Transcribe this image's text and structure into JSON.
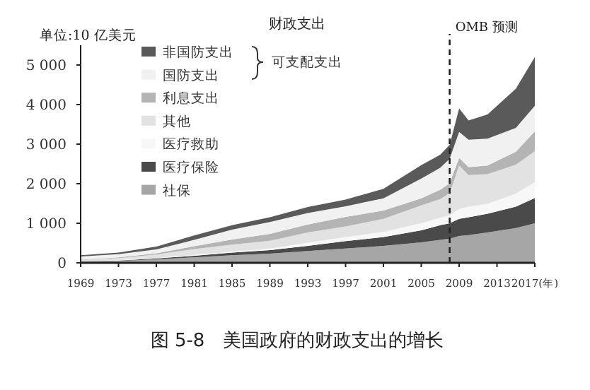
{
  "chart_data": {
    "type": "area",
    "stacked": true,
    "title": "财政支出",
    "ylabel": "单位:10 亿美元",
    "x": [
      1969,
      1973,
      1977,
      1981,
      1985,
      1989,
      1993,
      1997,
      2001,
      2005,
      2007,
      2008,
      2009,
      2010,
      2012,
      2015,
      2017
    ],
    "series": [
      {
        "name": "社保",
        "color": "#a6a6a6",
        "values": [
          30,
          50,
          90,
          140,
          190,
          230,
          300,
          360,
          430,
          520,
          580,
          610,
          680,
          700,
          770,
          880,
          1000
        ]
      },
      {
        "name": "医疗保险",
        "color": "#4a4a4a",
        "values": [
          10,
          10,
          20,
          40,
          70,
          90,
          130,
          190,
          220,
          300,
          370,
          390,
          430,
          450,
          470,
          540,
          640
        ]
      },
      {
        "name": "医疗救助",
        "color": "#f7f7f7",
        "values": [
          0,
          10,
          10,
          20,
          20,
          40,
          80,
          100,
          130,
          180,
          190,
          200,
          250,
          270,
          250,
          330,
          400
        ]
      },
      {
        "name": "其他",
        "color": "#e2e2e2",
        "values": [
          30,
          50,
          90,
          150,
          180,
          200,
          260,
          270,
          330,
          450,
          470,
          560,
          1100,
          800,
          750,
          730,
          780
        ]
      },
      {
        "name": "利息支出",
        "color": "#b4b4b4",
        "values": [
          10,
          20,
          30,
          70,
          130,
          170,
          200,
          240,
          210,
          180,
          240,
          250,
          190,
          200,
          220,
          330,
          500
        ]
      },
      {
        "name": "国防支出",
        "color": "#f1f1f1",
        "values": [
          80,
          80,
          100,
          160,
          250,
          300,
          290,
          270,
          310,
          500,
          550,
          620,
          660,
          690,
          680,
          600,
          650
        ]
      },
      {
        "name": "非国防支出",
        "color": "#5a5a5a",
        "values": [
          30,
          40,
          70,
          110,
          110,
          120,
          150,
          170,
          240,
          340,
          330,
          350,
          590,
          490,
          610,
          990,
          1230
        ]
      }
    ],
    "xlim": [
      1969,
      2017
    ],
    "ylim": [
      0,
      5500
    ],
    "xticks": [
      1969,
      1973,
      1977,
      1981,
      1985,
      1989,
      1993,
      1997,
      2001,
      2005,
      2009,
      2013,
      {
        "value": 2017,
        "label": "2017(年)"
      }
    ],
    "yticks": [
      0,
      {
        "value": 1000,
        "label": "1 000"
      },
      {
        "value": 2000,
        "label": "2 000"
      },
      {
        "value": 3000,
        "label": "3 000"
      },
      {
        "value": 4000,
        "label": "4 000"
      },
      {
        "value": 5000,
        "label": "5 000"
      }
    ],
    "ref_lines": [
      {
        "axis": "x",
        "value": 2008,
        "label": "OMB 预测",
        "line_style": "dashed",
        "color": "#222222"
      }
    ],
    "legend": "top left",
    "annotations": [
      "可支配支出",
      "图 5-8　美国政府的财政支出的增长"
    ]
  }
}
